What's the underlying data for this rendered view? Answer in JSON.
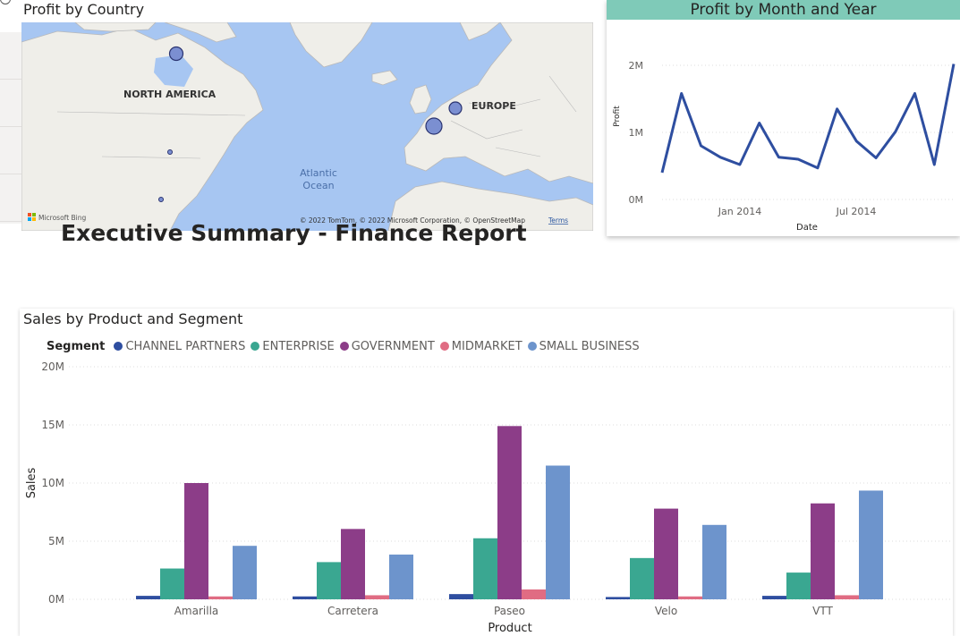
{
  "map": {
    "title": "Profit by Country",
    "labels": {
      "north_america": "NORTH AMERICA",
      "europe": "EUROPE",
      "atlantic_line1": "Atlantic",
      "atlantic_line2": "Ocean"
    },
    "attribution": "© 2022 TomTom, © 2022 Microsoft Corporation, © OpenStreetMap",
    "terms": "Terms",
    "bing_logo": "Microsoft Bing",
    "colors": {
      "ocean": "#a7c6f2",
      "land": "#efeee9",
      "bubble": "#7b8fd1",
      "bubble_stroke": "#2a3370"
    }
  },
  "report": {
    "title": "Executive Summary - Finance Report"
  },
  "line_chart": {
    "title": "Profit by Month and Year",
    "accent": "#7fcab8",
    "line_color": "#2e4ea0"
  },
  "bar_chart": {
    "title": "Sales by Product and Segment",
    "legend_title": "Segment"
  },
  "chart_data": [
    {
      "type": "line",
      "title": "Profit by Month and Year",
      "xlabel": "Date",
      "ylabel": "Profit",
      "x_tick_labels": [
        "Jan 2014",
        "Jul 2014"
      ],
      "y_tick_labels": [
        "0M",
        "1M",
        "2M"
      ],
      "ylim": [
        0,
        2000000
      ],
      "series": [
        {
          "values": [
            400000,
            1580000,
            800000,
            630000,
            520000,
            1140000,
            630000,
            600000,
            470000,
            1350000,
            870000,
            620000,
            1010000,
            1580000,
            520000,
            2020000
          ]
        }
      ],
      "grid": true
    },
    {
      "type": "bar",
      "title": "Sales by Product and Segment",
      "xlabel": "Product",
      "ylabel": "Sales",
      "legend_position": "top-left",
      "categories": [
        "Amarilla",
        "Carretera",
        "Paseo",
        "Velo",
        "VTT"
      ],
      "y_tick_labels": [
        "0M",
        "5M",
        "10M",
        "15M",
        "20M"
      ],
      "ylim": [
        0,
        20000000
      ],
      "grid": true,
      "series": [
        {
          "name": "CHANNEL PARTNERS",
          "color": "#2e4ea0",
          "values": [
            300000,
            250000,
            450000,
            200000,
            300000
          ]
        },
        {
          "name": "ENTERPRISE",
          "color": "#3aa791",
          "values": [
            2650000,
            3200000,
            5250000,
            3550000,
            2300000
          ]
        },
        {
          "name": "GOVERNMENT",
          "color": "#8c3d88",
          "values": [
            10000000,
            6050000,
            14900000,
            7800000,
            8250000
          ]
        },
        {
          "name": "MIDMARKET",
          "color": "#e06c83",
          "values": [
            250000,
            350000,
            850000,
            250000,
            350000
          ]
        },
        {
          "name": "SMALL BUSINESS",
          "color": "#6d94cc",
          "values": [
            4600000,
            3850000,
            11500000,
            6400000,
            9350000
          ]
        }
      ]
    }
  ]
}
